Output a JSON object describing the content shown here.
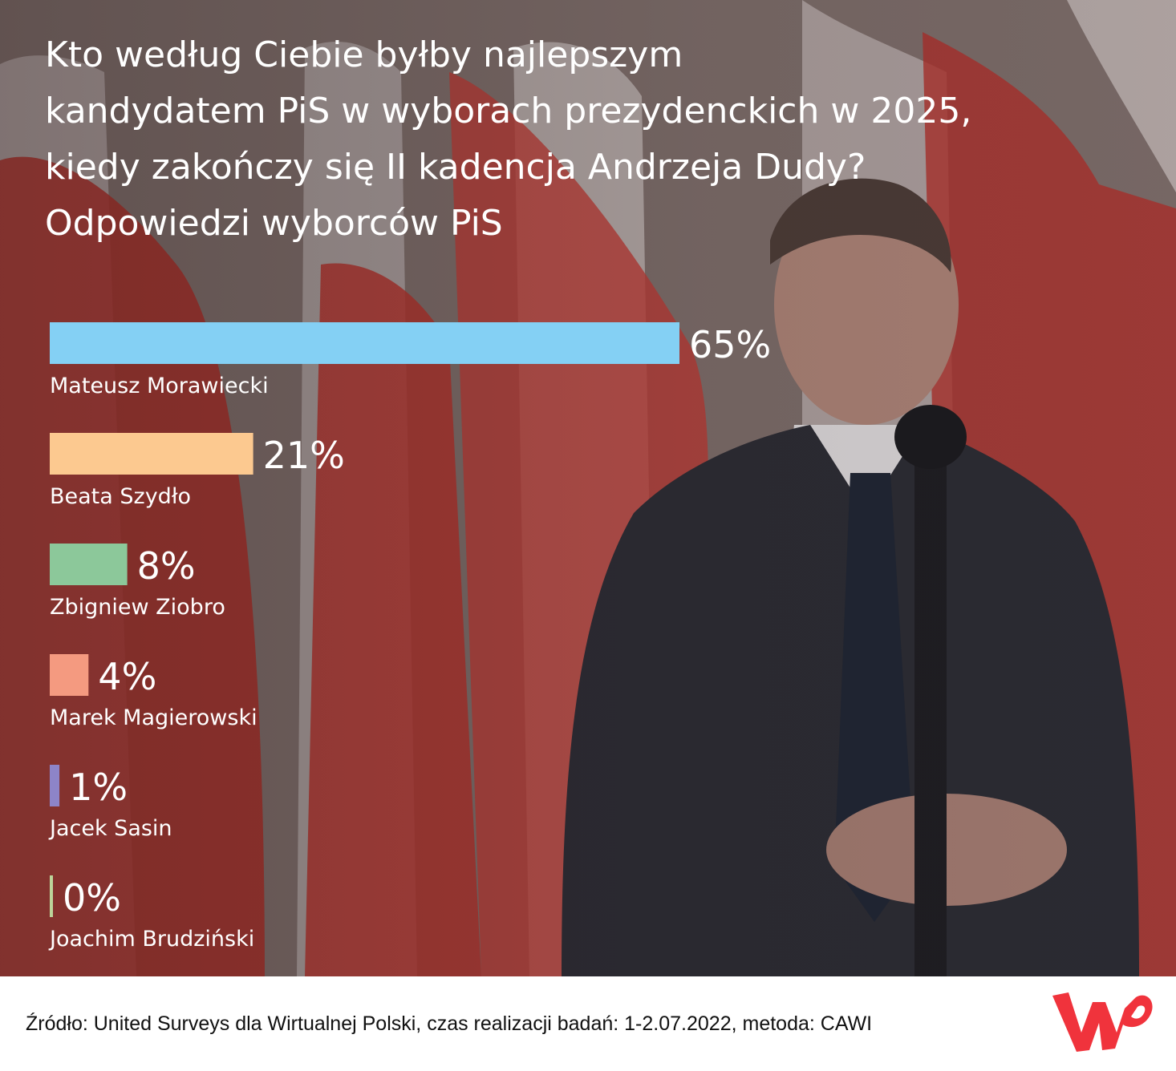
{
  "title_lines": [
    "Kto według Ciebie byłby najlepszym",
    "kandydatem PiS w wyborach prezydenckich w 2025,",
    "kiedy zakończy się II kadencja Andrzeja Dudy?",
    "Odpowiedzi wyborców PiS"
  ],
  "chart_data": {
    "type": "bar",
    "orientation": "horizontal",
    "categories": [
      "Mateusz Morawiecki",
      "Beata Szydło",
      "Zbigniew Ziobro",
      "Marek Magierowski",
      "Jacek Sasin",
      "Joachim Brudziński"
    ],
    "values": [
      65,
      21,
      8,
      4,
      1,
      0
    ],
    "value_labels": [
      "65%",
      "21%",
      "8%",
      "4%",
      "1%",
      "0%"
    ],
    "colors": [
      "#84d0f4",
      "#fcc990",
      "#8cc89a",
      "#f49a80",
      "#8d84c8",
      "#bcd49a"
    ],
    "unit": "%",
    "grid": false,
    "legend": "none"
  },
  "footer": {
    "source": "Źródło: United Surveys dla Wirtualnej Polski, czas realizacji badań: 1-2.07.2022, metoda: CAWI"
  },
  "logo": {
    "text": "WP",
    "color": "#f0333c"
  }
}
